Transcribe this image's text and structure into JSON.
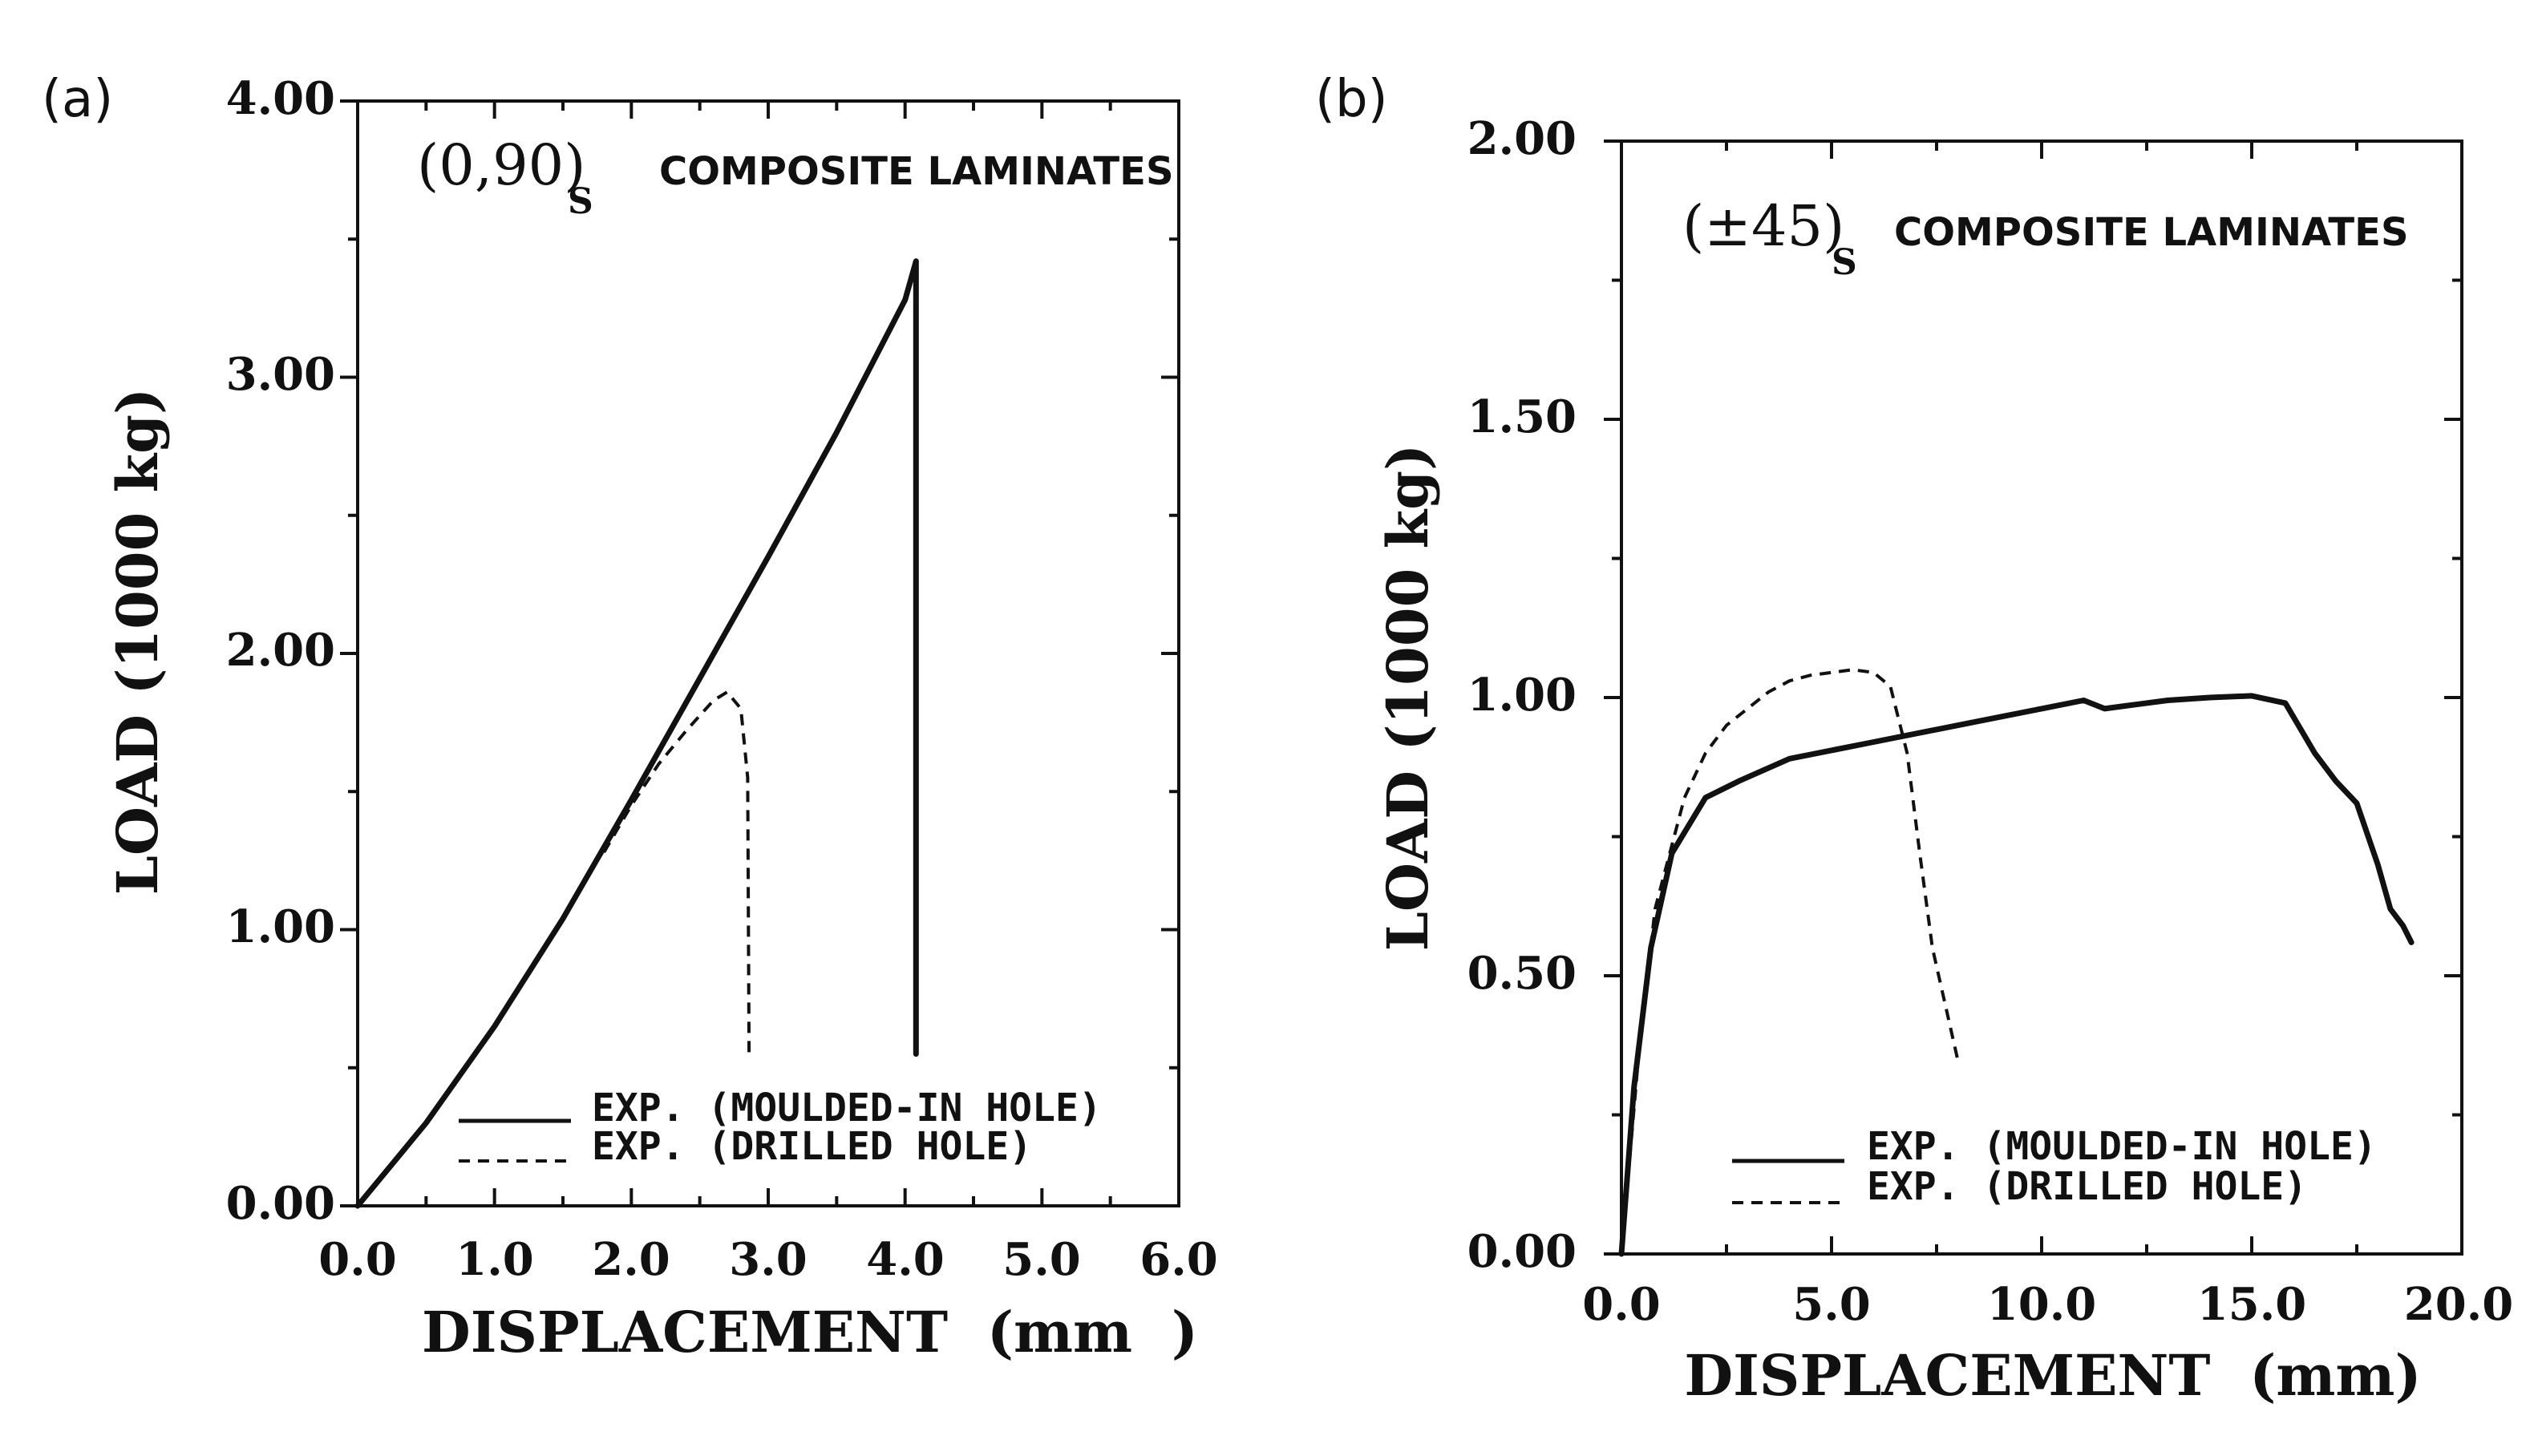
{
  "chart_data": [
    {
      "type": "line",
      "panel_label": "(a)",
      "annotation": {
        "laminate": "(0,90)",
        "subscript": "S",
        "text": "COMPOSITE LAMINATES"
      },
      "xlabel": "DISPLACEMENT  (mm  )",
      "ylabel": "LOAD (1000 kg)",
      "xlim": [
        0,
        6
      ],
      "ylim": [
        0,
        4
      ],
      "xticks": [
        "0.0",
        "1.0",
        "2.0",
        "3.0",
        "4.0",
        "5.0",
        "6.0"
      ],
      "yticks": [
        "0.00",
        "1.00",
        "2.00",
        "3.00",
        "4.00"
      ],
      "legend_position": "bottom-center",
      "series": [
        {
          "name": "EXP. (MOULDED-IN HOLE)",
          "style": "solid",
          "x": [
            0.0,
            0.5,
            1.0,
            1.5,
            2.0,
            2.5,
            3.0,
            3.5,
            4.0,
            4.08,
            4.08
          ],
          "y": [
            0.0,
            0.3,
            0.65,
            1.04,
            1.47,
            1.91,
            2.35,
            2.8,
            3.28,
            3.42,
            0.55
          ]
        },
        {
          "name": "EXP. (DRILLED HOLE)",
          "style": "dashed",
          "x": [
            1.8,
            2.0,
            2.2,
            2.4,
            2.6,
            2.7,
            2.8,
            2.85,
            2.86
          ],
          "y": [
            1.28,
            1.45,
            1.6,
            1.72,
            1.83,
            1.86,
            1.8,
            1.55,
            0.55
          ]
        }
      ]
    },
    {
      "type": "line",
      "panel_label": "(b)",
      "annotation": {
        "laminate": "(±45)",
        "subscript": "S",
        "text": "COMPOSITE LAMINATES"
      },
      "xlabel": "DISPLACEMENT  (mm)",
      "ylabel": "LOAD (1000 kg)",
      "xlim": [
        0,
        20
      ],
      "ylim": [
        0,
        2
      ],
      "xticks": [
        "0.0",
        "5.0",
        "10.0",
        "15.0",
        "20.0"
      ],
      "yticks": [
        "0.00",
        "0.50",
        "1.00",
        "1.50",
        "2.00"
      ],
      "legend_position": "bottom-center",
      "series": [
        {
          "name": "EXP. (MOULDED-IN HOLE)",
          "style": "solid",
          "x": [
            0,
            0.3,
            0.7,
            1.2,
            2.0,
            2.8,
            4,
            6,
            8,
            10,
            11,
            11.5,
            12,
            13,
            14,
            15,
            15.8,
            16.5,
            17,
            17.5,
            18,
            18.3,
            18.6,
            18.8
          ],
          "y": [
            0,
            0.3,
            0.55,
            0.72,
            0.82,
            0.85,
            0.89,
            0.92,
            0.95,
            0.98,
            0.995,
            0.98,
            0.985,
            0.995,
            1.0,
            1.003,
            0.99,
            0.9,
            0.85,
            0.81,
            0.7,
            0.62,
            0.59,
            0.56
          ]
        },
        {
          "name": "EXP. (DRILLED HOLE)",
          "style": "dashed",
          "x": [
            0,
            0.4,
            0.8,
            1.5,
            2.0,
            2.5,
            3.0,
            3.5,
            4.0,
            4.5,
            5.0,
            5.5,
            6.0,
            6.4,
            6.8,
            7.1,
            7.4,
            7.7,
            8.0
          ],
          "y": [
            0,
            0.35,
            0.62,
            0.82,
            0.9,
            0.95,
            0.98,
            1.01,
            1.03,
            1.04,
            1.045,
            1.05,
            1.045,
            1.02,
            0.9,
            0.72,
            0.55,
            0.45,
            0.35
          ]
        }
      ]
    }
  ]
}
